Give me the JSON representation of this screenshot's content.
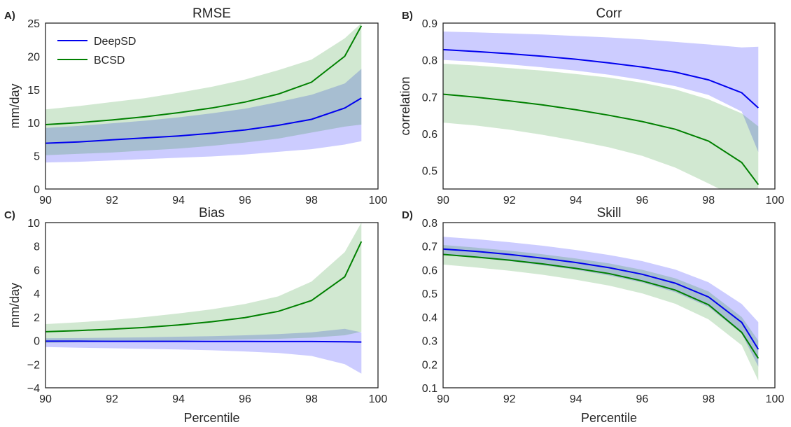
{
  "figure": {
    "colors": {
      "deepsd": "#0000ee",
      "bcsd": "#008000",
      "deepsd_band": "#0000ff",
      "bcsd_band": "#008000",
      "frame": "#262626"
    },
    "legend": {
      "deepsd": "DeepSD",
      "bcsd": "BCSD",
      "placement": "upper-left"
    }
  },
  "chart_data": [
    {
      "panel": "A)",
      "type": "line",
      "title": "RMSE",
      "xlabel": "",
      "ylabel": "mm/day",
      "xlim": [
        90,
        100
      ],
      "ylim": [
        0,
        25
      ],
      "xticks": [
        "90",
        "92",
        "94",
        "96",
        "98",
        "100"
      ],
      "yticks": [
        "0",
        "5",
        "10",
        "15",
        "20",
        "25"
      ],
      "x": [
        90,
        91,
        92,
        93,
        94,
        95,
        96,
        97,
        98,
        99,
        99.5
      ],
      "series": [
        {
          "name": "DeepSD",
          "key": "deepsd",
          "values": [
            6.9,
            7.1,
            7.4,
            7.7,
            8.0,
            8.4,
            8.9,
            9.6,
            10.5,
            12.2,
            13.7
          ],
          "lower": [
            4.0,
            4.1,
            4.3,
            4.5,
            4.7,
            4.9,
            5.2,
            5.6,
            6.0,
            6.7,
            7.2
          ],
          "upper": [
            9.2,
            9.5,
            9.9,
            10.3,
            10.8,
            11.4,
            12.1,
            13.1,
            14.2,
            15.9,
            18.1
          ]
        },
        {
          "name": "BCSD",
          "key": "bcsd",
          "values": [
            9.7,
            10.0,
            10.4,
            10.9,
            11.5,
            12.2,
            13.1,
            14.3,
            16.1,
            20.0,
            24.6
          ],
          "lower": [
            5.1,
            5.3,
            5.5,
            5.8,
            6.1,
            6.5,
            7.0,
            7.6,
            8.5,
            9.4,
            9.7
          ],
          "upper": [
            12.0,
            12.5,
            13.1,
            13.7,
            14.5,
            15.4,
            16.5,
            17.9,
            19.5,
            22.7,
            25.0
          ]
        }
      ]
    },
    {
      "panel": "B)",
      "type": "line",
      "title": "Corr",
      "xlabel": "",
      "ylabel": "correlation",
      "xlim": [
        90,
        100
      ],
      "ylim": [
        0.45,
        0.9
      ],
      "xticks": [
        "90",
        "92",
        "94",
        "96",
        "98",
        "100"
      ],
      "yticks": [
        "0.5",
        "0.6",
        "0.7",
        "0.8",
        "0.9"
      ],
      "x": [
        90,
        91,
        92,
        93,
        94,
        95,
        96,
        97,
        98,
        99,
        99.5
      ],
      "series": [
        {
          "name": "DeepSD",
          "key": "deepsd",
          "values": [
            0.828,
            0.823,
            0.817,
            0.81,
            0.802,
            0.792,
            0.781,
            0.767,
            0.746,
            0.711,
            0.67
          ],
          "lower": [
            0.8,
            0.795,
            0.788,
            0.78,
            0.771,
            0.76,
            0.746,
            0.729,
            0.705,
            0.66,
            0.55
          ],
          "upper": [
            0.877,
            0.875,
            0.872,
            0.869,
            0.865,
            0.861,
            0.856,
            0.849,
            0.842,
            0.834,
            0.836
          ]
        },
        {
          "name": "BCSD",
          "key": "bcsd",
          "values": [
            0.707,
            0.699,
            0.689,
            0.678,
            0.665,
            0.65,
            0.633,
            0.612,
            0.58,
            0.522,
            0.462
          ],
          "lower": [
            0.63,
            0.622,
            0.611,
            0.597,
            0.581,
            0.563,
            0.54,
            0.508,
            0.465,
            0.42,
            0.4
          ],
          "upper": [
            0.79,
            0.785,
            0.778,
            0.771,
            0.762,
            0.752,
            0.738,
            0.72,
            0.693,
            0.655,
            0.62
          ]
        }
      ]
    },
    {
      "panel": "C)",
      "type": "line",
      "title": "Bias",
      "xlabel": "Percentile",
      "ylabel": "mm/day",
      "xlim": [
        90,
        100
      ],
      "ylim": [
        -4,
        10
      ],
      "xticks": [
        "90",
        "92",
        "94",
        "96",
        "98",
        "100"
      ],
      "yticks": [
        "−4",
        "−2",
        "0",
        "2",
        "4",
        "6",
        "8",
        "10"
      ],
      "x": [
        90,
        91,
        92,
        93,
        94,
        95,
        96,
        97,
        98,
        99,
        99.5
      ],
      "series": [
        {
          "name": "DeepSD",
          "key": "deepsd",
          "values": [
            -0.05,
            -0.05,
            -0.06,
            -0.06,
            -0.06,
            -0.07,
            -0.07,
            -0.08,
            -0.08,
            -0.1,
            -0.12
          ],
          "lower": [
            -0.55,
            -0.6,
            -0.65,
            -0.7,
            -0.75,
            -0.82,
            -0.92,
            -1.05,
            -1.3,
            -2.0,
            -2.8
          ],
          "upper": [
            0.2,
            0.22,
            0.25,
            0.28,
            0.33,
            0.38,
            0.45,
            0.55,
            0.7,
            1.0,
            0.7
          ]
        },
        {
          "name": "BCSD",
          "key": "bcsd",
          "values": [
            0.75,
            0.85,
            0.97,
            1.12,
            1.33,
            1.6,
            1.95,
            2.48,
            3.4,
            5.4,
            8.4
          ],
          "lower": [
            -0.2,
            -0.15,
            -0.1,
            -0.05,
            0.0,
            0.05,
            0.1,
            0.15,
            0.25,
            0.45,
            0.75
          ],
          "upper": [
            1.4,
            1.55,
            1.75,
            2.0,
            2.3,
            2.65,
            3.1,
            3.75,
            5.0,
            7.5,
            10.0
          ]
        }
      ]
    },
    {
      "panel": "D)",
      "type": "line",
      "title": "Skill",
      "xlabel": "Percentile",
      "ylabel": "",
      "xlim": [
        90,
        100
      ],
      "ylim": [
        0.1,
        0.8
      ],
      "xticks": [
        "90",
        "92",
        "94",
        "96",
        "98",
        "100"
      ],
      "yticks": [
        "0.1",
        "0.2",
        "0.3",
        "0.4",
        "0.5",
        "0.6",
        "0.7",
        "0.8"
      ],
      "x": [
        90,
        91,
        92,
        93,
        94,
        95,
        96,
        97,
        98,
        99,
        99.5
      ],
      "series": [
        {
          "name": "DeepSD",
          "key": "deepsd",
          "values": [
            0.688,
            0.678,
            0.665,
            0.649,
            0.631,
            0.609,
            0.581,
            0.543,
            0.485,
            0.377,
            0.263
          ],
          "lower": [
            0.662,
            0.651,
            0.637,
            0.619,
            0.6,
            0.576,
            0.546,
            0.505,
            0.443,
            0.33,
            0.19
          ],
          "upper": [
            0.74,
            0.73,
            0.717,
            0.702,
            0.684,
            0.663,
            0.637,
            0.601,
            0.547,
            0.455,
            0.378
          ]
        },
        {
          "name": "BCSD",
          "key": "bcsd",
          "values": [
            0.665,
            0.654,
            0.641,
            0.625,
            0.606,
            0.584,
            0.553,
            0.514,
            0.452,
            0.335,
            0.225
          ],
          "lower": [
            0.622,
            0.61,
            0.596,
            0.579,
            0.558,
            0.533,
            0.5,
            0.456,
            0.39,
            0.28,
            0.13
          ],
          "upper": [
            0.705,
            0.694,
            0.681,
            0.666,
            0.648,
            0.627,
            0.6,
            0.564,
            0.508,
            0.4,
            0.3
          ]
        }
      ]
    }
  ]
}
